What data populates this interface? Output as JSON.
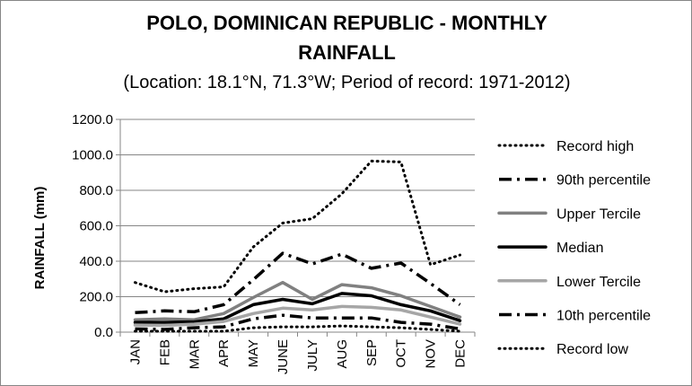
{
  "chart_data": {
    "type": "line",
    "title_line1": "POLO, DOMINICAN REPUBLIC - MONTHLY",
    "title_line2": "RAINFALL",
    "subtitle": "(Location: 18.1°N, 71.3°W; Period of record: 1971-2012)",
    "xlabel": "",
    "ylabel": "RAINFALL (mm)",
    "ylim": [
      0,
      1200
    ],
    "yticks": [
      "0.0",
      "200.0",
      "400.0",
      "600.0",
      "800.0",
      "1000.0",
      "1200.0"
    ],
    "categories": [
      "JAN",
      "FEB",
      "MAR",
      "APR",
      "MAY",
      "JUNE",
      "JULY",
      "AUG",
      "SEP",
      "OCT",
      "NOV",
      "DEC"
    ],
    "grid": true,
    "legend_position": "right",
    "series": [
      {
        "name": "Record high",
        "color": "#000000",
        "style": "dotted",
        "values": [
          280,
          228,
          245,
          255,
          480,
          615,
          640,
          780,
          965,
          960,
          380,
          435
        ]
      },
      {
        "name": "90th percentile",
        "color": "#000000",
        "style": "dashdot",
        "values": [
          110,
          120,
          115,
          155,
          295,
          445,
          385,
          440,
          360,
          390,
          275,
          155
        ]
      },
      {
        "name": "Upper Tercile",
        "color": "#808080",
        "style": "solid",
        "values": [
          70,
          75,
          70,
          105,
          195,
          280,
          185,
          268,
          250,
          205,
          145,
          85
        ]
      },
      {
        "name": "Median",
        "color": "#000000",
        "style": "solid",
        "values": [
          55,
          55,
          58,
          75,
          155,
          185,
          160,
          218,
          205,
          155,
          120,
          65
        ]
      },
      {
        "name": "Lower Tercile",
        "color": "#a6a6a6",
        "style": "solid",
        "values": [
          40,
          38,
          45,
          60,
          105,
          135,
          125,
          145,
          140,
          125,
          85,
          45
        ]
      },
      {
        "name": "10th percentile",
        "color": "#000000",
        "style": "dashdot",
        "values": [
          18,
          15,
          25,
          30,
          75,
          95,
          80,
          80,
          80,
          55,
          45,
          18
        ]
      },
      {
        "name": "Record low",
        "color": "#000000",
        "style": "dotted",
        "values": [
          5,
          5,
          5,
          5,
          25,
          30,
          30,
          35,
          30,
          25,
          15,
          5
        ]
      }
    ]
  }
}
